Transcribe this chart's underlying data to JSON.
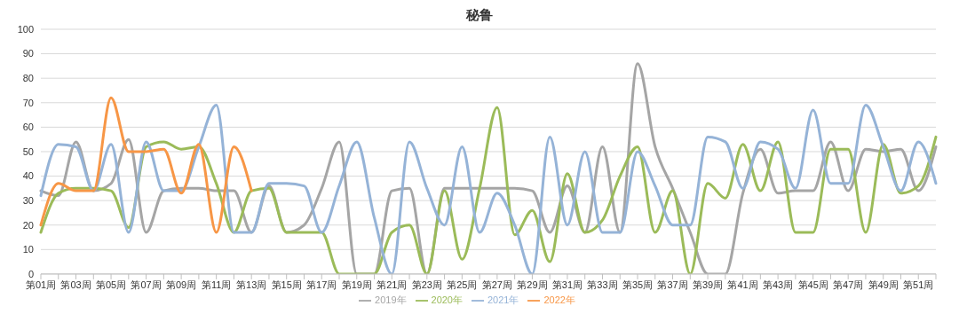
{
  "chart_data": {
    "type": "line",
    "title": "秘鲁",
    "categories": [
      "第01周",
      null,
      "第03周",
      null,
      "第05周",
      null,
      "第07周",
      null,
      "第09周",
      null,
      "第11周",
      null,
      "第13周",
      null,
      "第15周",
      null,
      "第17周",
      null,
      "第19周",
      null,
      "第21周",
      null,
      "第23周",
      null,
      "第25周",
      null,
      "第27周",
      null,
      "第29周",
      null,
      "第31周",
      null,
      "第33周",
      null,
      "第35周",
      null,
      "第37周",
      null,
      "第39周",
      null,
      "第41周",
      null,
      "第43周",
      null,
      "第45周",
      null,
      "第47周",
      null,
      "第49周",
      null,
      "第51周",
      null
    ],
    "series": [
      {
        "name": "2019年",
        "color": "#a5a5a5",
        "values": [
          34,
          32,
          54,
          34,
          37,
          55,
          17,
          34,
          35,
          35,
          34,
          34,
          17,
          36,
          17,
          20,
          35,
          54,
          0,
          0,
          34,
          35,
          0,
          35,
          35,
          35,
          35,
          35,
          34,
          17,
          36,
          17,
          52,
          17,
          86,
          52,
          35,
          17,
          0,
          0,
          33,
          51,
          33,
          34,
          34,
          54,
          34,
          51,
          50,
          51,
          34,
          52
        ]
      },
      {
        "name": "2020年",
        "color": "#9bbb59",
        "values": [
          17,
          33,
          35,
          35,
          34,
          19,
          52,
          54,
          51,
          52,
          37,
          17,
          34,
          35,
          17,
          17,
          17,
          0,
          0,
          0,
          17,
          20,
          0,
          34,
          6,
          35,
          68,
          16,
          26,
          5,
          41,
          17,
          22,
          40,
          52,
          17,
          34,
          0,
          37,
          31,
          53,
          34,
          54,
          17,
          17,
          51,
          51,
          17,
          53,
          33,
          36,
          56
        ]
      },
      {
        "name": "2021年",
        "color": "#95b3d7",
        "values": [
          32,
          53,
          52,
          34,
          53,
          17,
          54,
          34,
          34,
          52,
          69,
          17,
          17,
          37,
          37,
          36,
          17,
          36,
          54,
          23,
          0,
          54,
          35,
          20,
          52,
          17,
          33,
          20,
          0,
          56,
          20,
          50,
          17,
          17,
          50,
          36,
          20,
          20,
          56,
          54,
          35,
          54,
          51,
          35,
          67,
          37,
          37,
          69,
          52,
          34,
          54,
          37
        ]
      },
      {
        "name": "2022年",
        "color": "#f79646",
        "values": [
          20,
          37,
          34,
          34,
          72,
          50,
          50,
          51,
          33,
          53,
          17,
          52,
          34,
          null,
          null,
          null,
          null,
          null,
          null,
          null,
          null,
          null,
          null,
          null,
          null,
          null,
          null,
          null,
          null,
          null,
          null,
          null,
          null,
          null,
          null,
          null,
          null,
          null,
          null,
          null,
          null,
          null,
          null,
          null,
          null,
          null,
          null,
          null,
          null,
          null,
          null,
          null
        ]
      }
    ],
    "ylim": [
      0,
      100
    ],
    "yticks": [
      0,
      10,
      20,
      30,
      40,
      50,
      60,
      70,
      80,
      90,
      100
    ],
    "grid": "y",
    "legend": "bottom",
    "marker": "none",
    "line_style": "solid"
  }
}
